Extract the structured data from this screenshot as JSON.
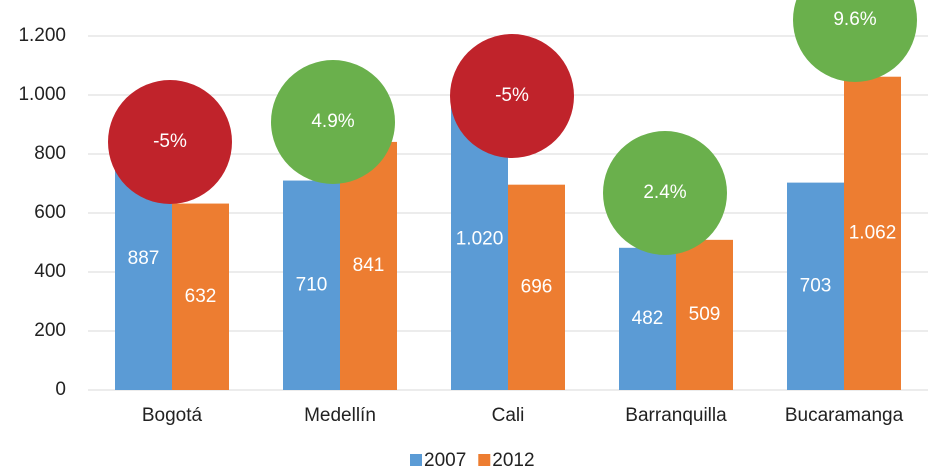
{
  "chart_data": {
    "type": "bar",
    "categories": [
      "Bogotá",
      "Medellín",
      "Cali",
      "Barranquilla",
      "Bucaramanga"
    ],
    "series": [
      {
        "name": "2007",
        "color": "#5b9bd5",
        "values": [
          887,
          710,
          1020,
          482,
          703
        ],
        "value_labels": [
          "887",
          "710",
          "1.020",
          "482",
          "703"
        ]
      },
      {
        "name": "2012",
        "color": "#ed7d31",
        "values": [
          632,
          841,
          696,
          509,
          1062
        ],
        "value_labels": [
          "632",
          "841",
          "696",
          "509",
          "1.062"
        ]
      }
    ],
    "annotations": [
      {
        "text": "-5%",
        "color": "#c0232b"
      },
      {
        "text": "4.9%",
        "color": "#6ab04c"
      },
      {
        "text": "-5%",
        "color": "#c0232b"
      },
      {
        "text": "2.4%",
        "color": "#6ab04c"
      },
      {
        "text": "9.6%",
        "color": "#6ab04c"
      }
    ],
    "ylim": [
      0,
      1200
    ],
    "yticks": [
      0,
      200,
      400,
      600,
      800,
      {
        "value": 1000,
        "label": "1.000"
      },
      {
        "value": 1200,
        "label": "1.200"
      }
    ],
    "grid": true,
    "legend": "bottom"
  }
}
